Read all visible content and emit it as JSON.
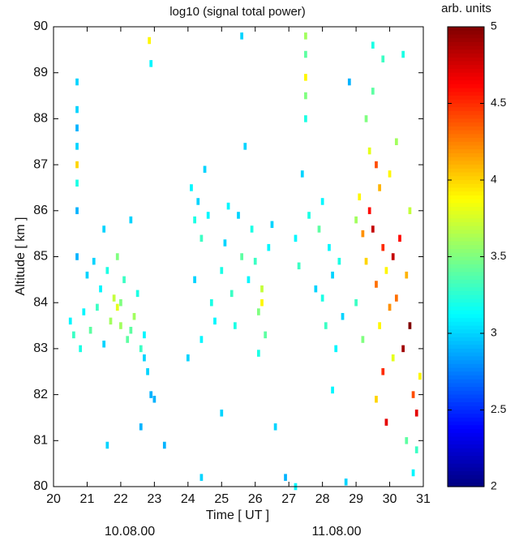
{
  "chart_data": {
    "type": "heatmap",
    "title": "log10 (signal total power)",
    "xlabel": "Time [ UT ]",
    "ylabel": "Altitude [ km ]",
    "colorbar_label": "arb. units",
    "annotations": [
      "10.08.00",
      "11.08.00"
    ],
    "xlim": [
      20,
      31
    ],
    "xticks": [
      20,
      21,
      22,
      23,
      24,
      25,
      26,
      27,
      28,
      29,
      30,
      31
    ],
    "ylim": [
      80,
      90
    ],
    "yticks": [
      80,
      81,
      82,
      83,
      84,
      85,
      86,
      87,
      88,
      89,
      90
    ],
    "clim": [
      2,
      5
    ],
    "cticks": [
      2,
      2.5,
      3,
      3.5,
      4,
      4.5,
      5
    ],
    "colormap": "jet",
    "x": [
      20.7,
      20.7,
      20.7,
      20.7,
      20.7,
      20.7,
      20.7,
      20.7,
      20.5,
      20.6,
      20.8,
      20.9,
      21.0,
      21.1,
      21.2,
      21.3,
      21.4,
      21.5,
      21.6,
      21.7,
      21.8,
      21.9,
      22.0,
      22.1,
      22.2,
      22.3,
      22.4,
      22.5,
      22.6,
      22.7,
      22.8,
      22.9,
      22.85,
      22.9,
      21.9,
      22.0,
      21.5,
      22.3,
      22.7,
      23.0,
      24.1,
      24.2,
      24.3,
      24.4,
      24.5,
      24.6,
      24.2,
      24.4,
      24.0,
      24.7,
      24.8,
      25.0,
      25.1,
      25.2,
      25.3,
      25.4,
      25.5,
      25.6,
      25.7,
      25.8,
      25.9,
      26.0,
      26.1,
      26.2,
      26.3,
      26.4,
      26.5,
      26.1,
      26.2,
      25.6,
      27.5,
      27.5,
      27.5,
      27.5,
      27.5,
      27.4,
      27.2,
      27.3,
      27.6,
      27.8,
      27.9,
      28.0,
      28.1,
      28.2,
      28.3,
      28.4,
      28.5,
      28.6,
      28.0,
      28.8,
      29.0,
      29.1,
      29.2,
      29.3,
      29.4,
      29.5,
      29.6,
      29.7,
      29.8,
      29.9,
      29.3,
      29.4,
      29.5,
      29.6,
      29.7,
      29.8,
      29.9,
      30.0,
      30.1,
      30.2,
      30.3,
      30.4,
      30.5,
      30.6,
      30.7,
      30.8,
      30.9,
      30.4,
      30.6,
      30.8,
      29.5,
      29.8,
      30.0,
      30.2,
      30.5,
      30.7,
      29.2,
      29.0,
      29.6,
      30.1,
      23.3,
      24.4,
      26.9,
      28.7,
      28.3,
      25.0,
      22.6,
      21.6,
      26.6,
      27.2
    ],
    "y": [
      88.8,
      88.2,
      87.8,
      87.4,
      87.0,
      86.6,
      86.0,
      85.0,
      83.6,
      83.3,
      83.0,
      83.8,
      84.6,
      83.4,
      84.9,
      83.9,
      84.3,
      83.1,
      84.7,
      83.6,
      84.1,
      85.0,
      83.5,
      84.5,
      83.2,
      85.8,
      83.7,
      84.2,
      83.0,
      82.8,
      82.5,
      82.0,
      89.7,
      89.2,
      83.9,
      84.0,
      85.6,
      83.4,
      83.3,
      81.9,
      86.5,
      85.8,
      86.2,
      85.4,
      86.9,
      85.9,
      84.5,
      83.2,
      82.8,
      84.0,
      83.6,
      84.7,
      85.3,
      86.1,
      84.2,
      83.5,
      85.9,
      85.0,
      87.4,
      84.5,
      85.6,
      84.9,
      83.8,
      84.3,
      83.3,
      85.2,
      85.7,
      82.9,
      84.0,
      89.8,
      89.8,
      89.4,
      88.9,
      88.5,
      88.0,
      86.8,
      85.4,
      84.8,
      85.9,
      84.3,
      85.6,
      84.1,
      83.5,
      85.2,
      84.6,
      83.0,
      84.9,
      83.7,
      86.2,
      88.8,
      85.8,
      86.3,
      85.5,
      84.9,
      86.0,
      85.6,
      84.4,
      86.5,
      85.2,
      84.7,
      88.0,
      87.3,
      88.6,
      87.0,
      83.5,
      82.5,
      81.4,
      83.9,
      82.8,
      84.1,
      85.4,
      83.0,
      84.6,
      83.5,
      82.0,
      81.6,
      82.4,
      89.4,
      86.0,
      80.8,
      89.6,
      89.3,
      86.8,
      87.5,
      81.0,
      80.3,
      83.2,
      84.0,
      81.9,
      85.0,
      80.9,
      80.2,
      80.2,
      80.1,
      82.1,
      81.6,
      81.3,
      80.9,
      81.3,
      80.0
    ],
    "values": [
      3.0,
      3.0,
      2.9,
      3.0,
      4.0,
      3.2,
      2.9,
      2.9,
      3.1,
      3.3,
      3.2,
      3.1,
      3.0,
      3.4,
      3.0,
      3.3,
      3.1,
      3.0,
      3.2,
      3.6,
      3.7,
      3.5,
      3.6,
      3.3,
      3.4,
      3.0,
      3.6,
      3.2,
      3.3,
      3.0,
      3.0,
      2.9,
      3.9,
      3.1,
      3.8,
      3.5,
      3.0,
      3.4,
      3.1,
      2.9,
      3.1,
      3.2,
      3.0,
      3.3,
      3.0,
      3.1,
      3.0,
      3.1,
      3.0,
      3.2,
      3.1,
      3.2,
      3.0,
      3.1,
      3.3,
      3.2,
      3.0,
      3.4,
      3.0,
      3.1,
      3.2,
      3.3,
      3.5,
      3.7,
      3.4,
      3.1,
      3.0,
      3.2,
      3.9,
      3.0,
      3.6,
      3.4,
      3.9,
      3.5,
      3.2,
      3.0,
      3.1,
      3.3,
      3.2,
      3.0,
      3.4,
      3.2,
      3.3,
      3.1,
      3.0,
      3.1,
      3.2,
      3.0,
      3.1,
      2.9,
      3.6,
      3.9,
      4.2,
      4.0,
      4.6,
      4.8,
      4.3,
      4.1,
      4.5,
      3.9,
      3.5,
      3.8,
      3.4,
      4.4,
      3.9,
      4.5,
      4.7,
      4.2,
      3.8,
      4.3,
      4.6,
      4.9,
      4.1,
      5.0,
      4.4,
      4.7,
      3.9,
      3.2,
      3.7,
      3.3,
      3.2,
      3.3,
      3.9,
      3.6,
      3.4,
      3.1,
      3.5,
      3.3,
      4.0,
      4.8,
      2.9,
      3.0,
      2.9,
      3.0,
      3.1,
      3.0,
      2.9,
      3.0,
      3.0,
      3.1
    ]
  }
}
